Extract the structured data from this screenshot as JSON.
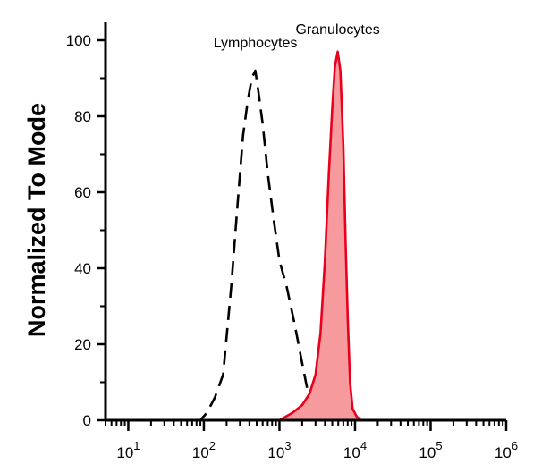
{
  "chart_data": {
    "type": "area",
    "title": "",
    "xlabel": "",
    "ylabel": "Normalized To Mode",
    "xscale": "log",
    "xlim": [
      5,
      1000000
    ],
    "ylim": [
      0,
      100
    ],
    "yticks": [
      0,
      20,
      40,
      60,
      80,
      100
    ],
    "xticks": [
      {
        "value": 10,
        "base": "10",
        "exp": "1"
      },
      {
        "value": 100,
        "base": "10",
        "exp": "2"
      },
      {
        "value": 1000,
        "base": "10",
        "exp": "3"
      },
      {
        "value": 10000,
        "base": "10",
        "exp": "4"
      },
      {
        "value": 100000,
        "base": "10",
        "exp": "5"
      },
      {
        "value": 1000000,
        "base": "10",
        "exp": "6"
      }
    ],
    "grid": false,
    "series": [
      {
        "name": "Lymphocytes",
        "style": "dashed",
        "color": "#000000",
        "fill": "none",
        "points": [
          [
            5,
            0
          ],
          [
            60,
            0
          ],
          [
            90,
            0
          ],
          [
            110,
            2
          ],
          [
            140,
            6
          ],
          [
            180,
            12
          ],
          [
            230,
            35
          ],
          [
            280,
            57
          ],
          [
            330,
            75
          ],
          [
            380,
            84
          ],
          [
            430,
            90
          ],
          [
            480,
            92
          ],
          [
            530,
            86
          ],
          [
            600,
            78
          ],
          [
            700,
            65
          ],
          [
            850,
            52
          ],
          [
            1000,
            42
          ],
          [
            1250,
            35
          ],
          [
            1600,
            25
          ],
          [
            2000,
            15
          ],
          [
            2400,
            7
          ],
          [
            2800,
            4
          ],
          [
            3300,
            3
          ],
          [
            3800,
            5
          ],
          [
            4300,
            5
          ],
          [
            5000,
            6
          ],
          [
            5800,
            4
          ],
          [
            6800,
            2
          ],
          [
            8000,
            1
          ],
          [
            10000,
            0
          ],
          [
            20000,
            0
          ],
          [
            100000,
            0
          ],
          [
            1000000,
            0
          ]
        ]
      },
      {
        "name": "Granulocytes",
        "style": "solid",
        "color": "#e8001c",
        "fill": "#f79a9e",
        "points": [
          [
            5,
            0
          ],
          [
            300,
            0
          ],
          [
            1000,
            0
          ],
          [
            1500,
            2
          ],
          [
            2000,
            4
          ],
          [
            2500,
            7
          ],
          [
            3000,
            12
          ],
          [
            3500,
            23
          ],
          [
            4000,
            42
          ],
          [
            4500,
            65
          ],
          [
            5000,
            82
          ],
          [
            5400,
            93
          ],
          [
            5900,
            97
          ],
          [
            6400,
            92
          ],
          [
            7000,
            72
          ],
          [
            7500,
            47
          ],
          [
            8000,
            27
          ],
          [
            8600,
            10
          ],
          [
            9300,
            3
          ],
          [
            10500,
            1
          ],
          [
            12000,
            0
          ],
          [
            20000,
            0
          ],
          [
            100000,
            0
          ],
          [
            1000000,
            0
          ]
        ]
      }
    ],
    "annotations": [
      {
        "text": "Lymphocytes",
        "x": 480,
        "y": 92
      },
      {
        "text": "Granulocytes",
        "x": 5900,
        "y": 97
      }
    ]
  }
}
